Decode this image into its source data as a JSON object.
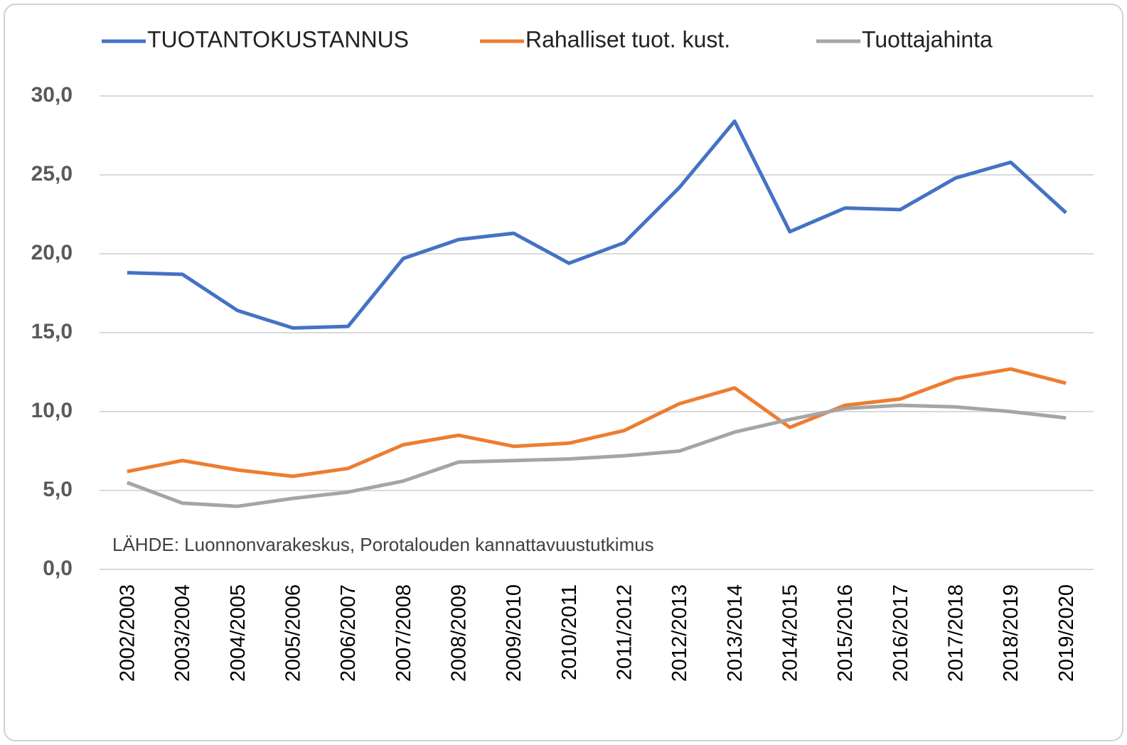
{
  "chart_data": {
    "type": "line",
    "annotation": "LÄHDE: Luonnonvarakeskus, Porotalouden kannattavuustutkimus",
    "categories": [
      "2002/2003",
      "2003/2004",
      "2004/2005",
      "2005/2006",
      "2006/2007",
      "2007/2008",
      "2008/2009",
      "2009/2010",
      "2010/2011",
      "2011/2012",
      "2012/2013",
      "2013/2014",
      "2014/2015",
      "2015/2016",
      "2016/2017",
      "2017/2018",
      "2018/2019",
      "2019/2020"
    ],
    "series": [
      {
        "name": "TUOTANTOKUSTANNUS",
        "color": "#4472c4",
        "values": [
          18.8,
          18.7,
          16.4,
          15.3,
          15.4,
          19.7,
          20.9,
          21.3,
          19.4,
          20.7,
          24.2,
          28.4,
          21.4,
          22.9,
          22.8,
          24.8,
          25.8,
          22.6
        ]
      },
      {
        "name": "Rahalliset tuot. kust.",
        "color": "#ed7d31",
        "values": [
          6.2,
          6.9,
          6.3,
          5.9,
          6.4,
          7.9,
          8.5,
          7.8,
          8.0,
          8.8,
          10.5,
          11.5,
          9.0,
          10.4,
          10.8,
          12.1,
          12.7,
          11.8
        ]
      },
      {
        "name": "Tuottajahinta",
        "color": "#a5a5a5",
        "values": [
          5.5,
          4.2,
          4.0,
          4.5,
          4.9,
          5.6,
          6.8,
          6.9,
          7.0,
          7.2,
          7.5,
          8.7,
          9.5,
          10.2,
          10.4,
          10.3,
          10.0,
          9.6
        ]
      }
    ],
    "ylim": [
      0,
      30
    ],
    "yticks": [
      {
        "value": 0,
        "label": "0,0"
      },
      {
        "value": 5,
        "label": "5,0"
      },
      {
        "value": 10,
        "label": "10,0"
      },
      {
        "value": 15,
        "label": "15,0"
      },
      {
        "value": 20,
        "label": "20,0"
      },
      {
        "value": 25,
        "label": "25,0"
      },
      {
        "value": 30,
        "label": "30,0"
      }
    ],
    "grid": true,
    "legend": "top"
  }
}
